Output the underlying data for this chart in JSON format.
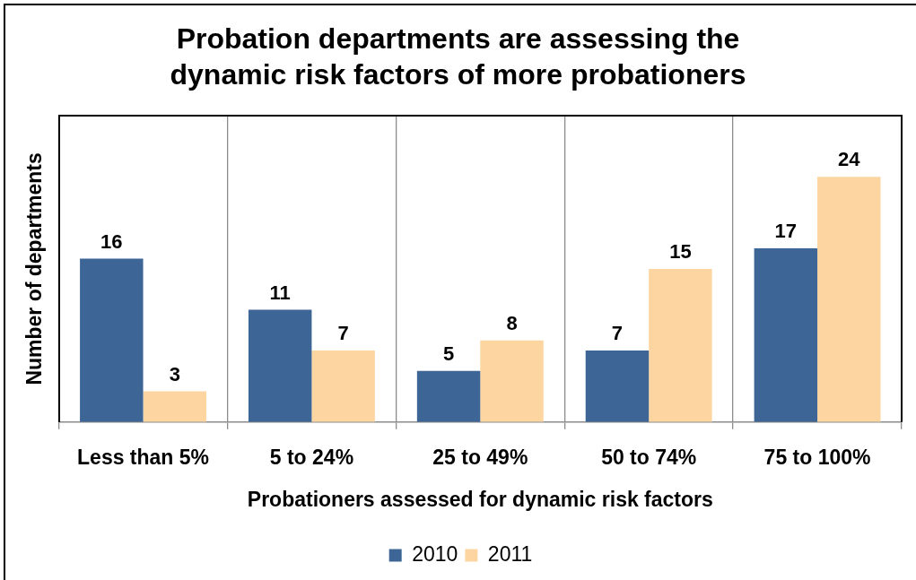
{
  "chart_data": {
    "type": "bar",
    "title": "Probation departments are assessing the dynamic risk factors of more probationers",
    "xlabel": "Probationers assessed for dynamic risk factors",
    "ylabel": "Number of departments",
    "categories": [
      "Less than 5%",
      "5 to 24%",
      "25 to 49%",
      "50 to 74%",
      "75 to 100%"
    ],
    "series": [
      {
        "name": "2010",
        "color": "#3d6696",
        "values": [
          16,
          11,
          5,
          7,
          17
        ]
      },
      {
        "name": "2011",
        "color": "#fcd5a0",
        "values": [
          3,
          7,
          8,
          15,
          24
        ]
      }
    ],
    "ylim": [
      0,
      30
    ],
    "tick_labels": "x",
    "grid": "x",
    "legend": "bottom",
    "data_labels": true
  }
}
